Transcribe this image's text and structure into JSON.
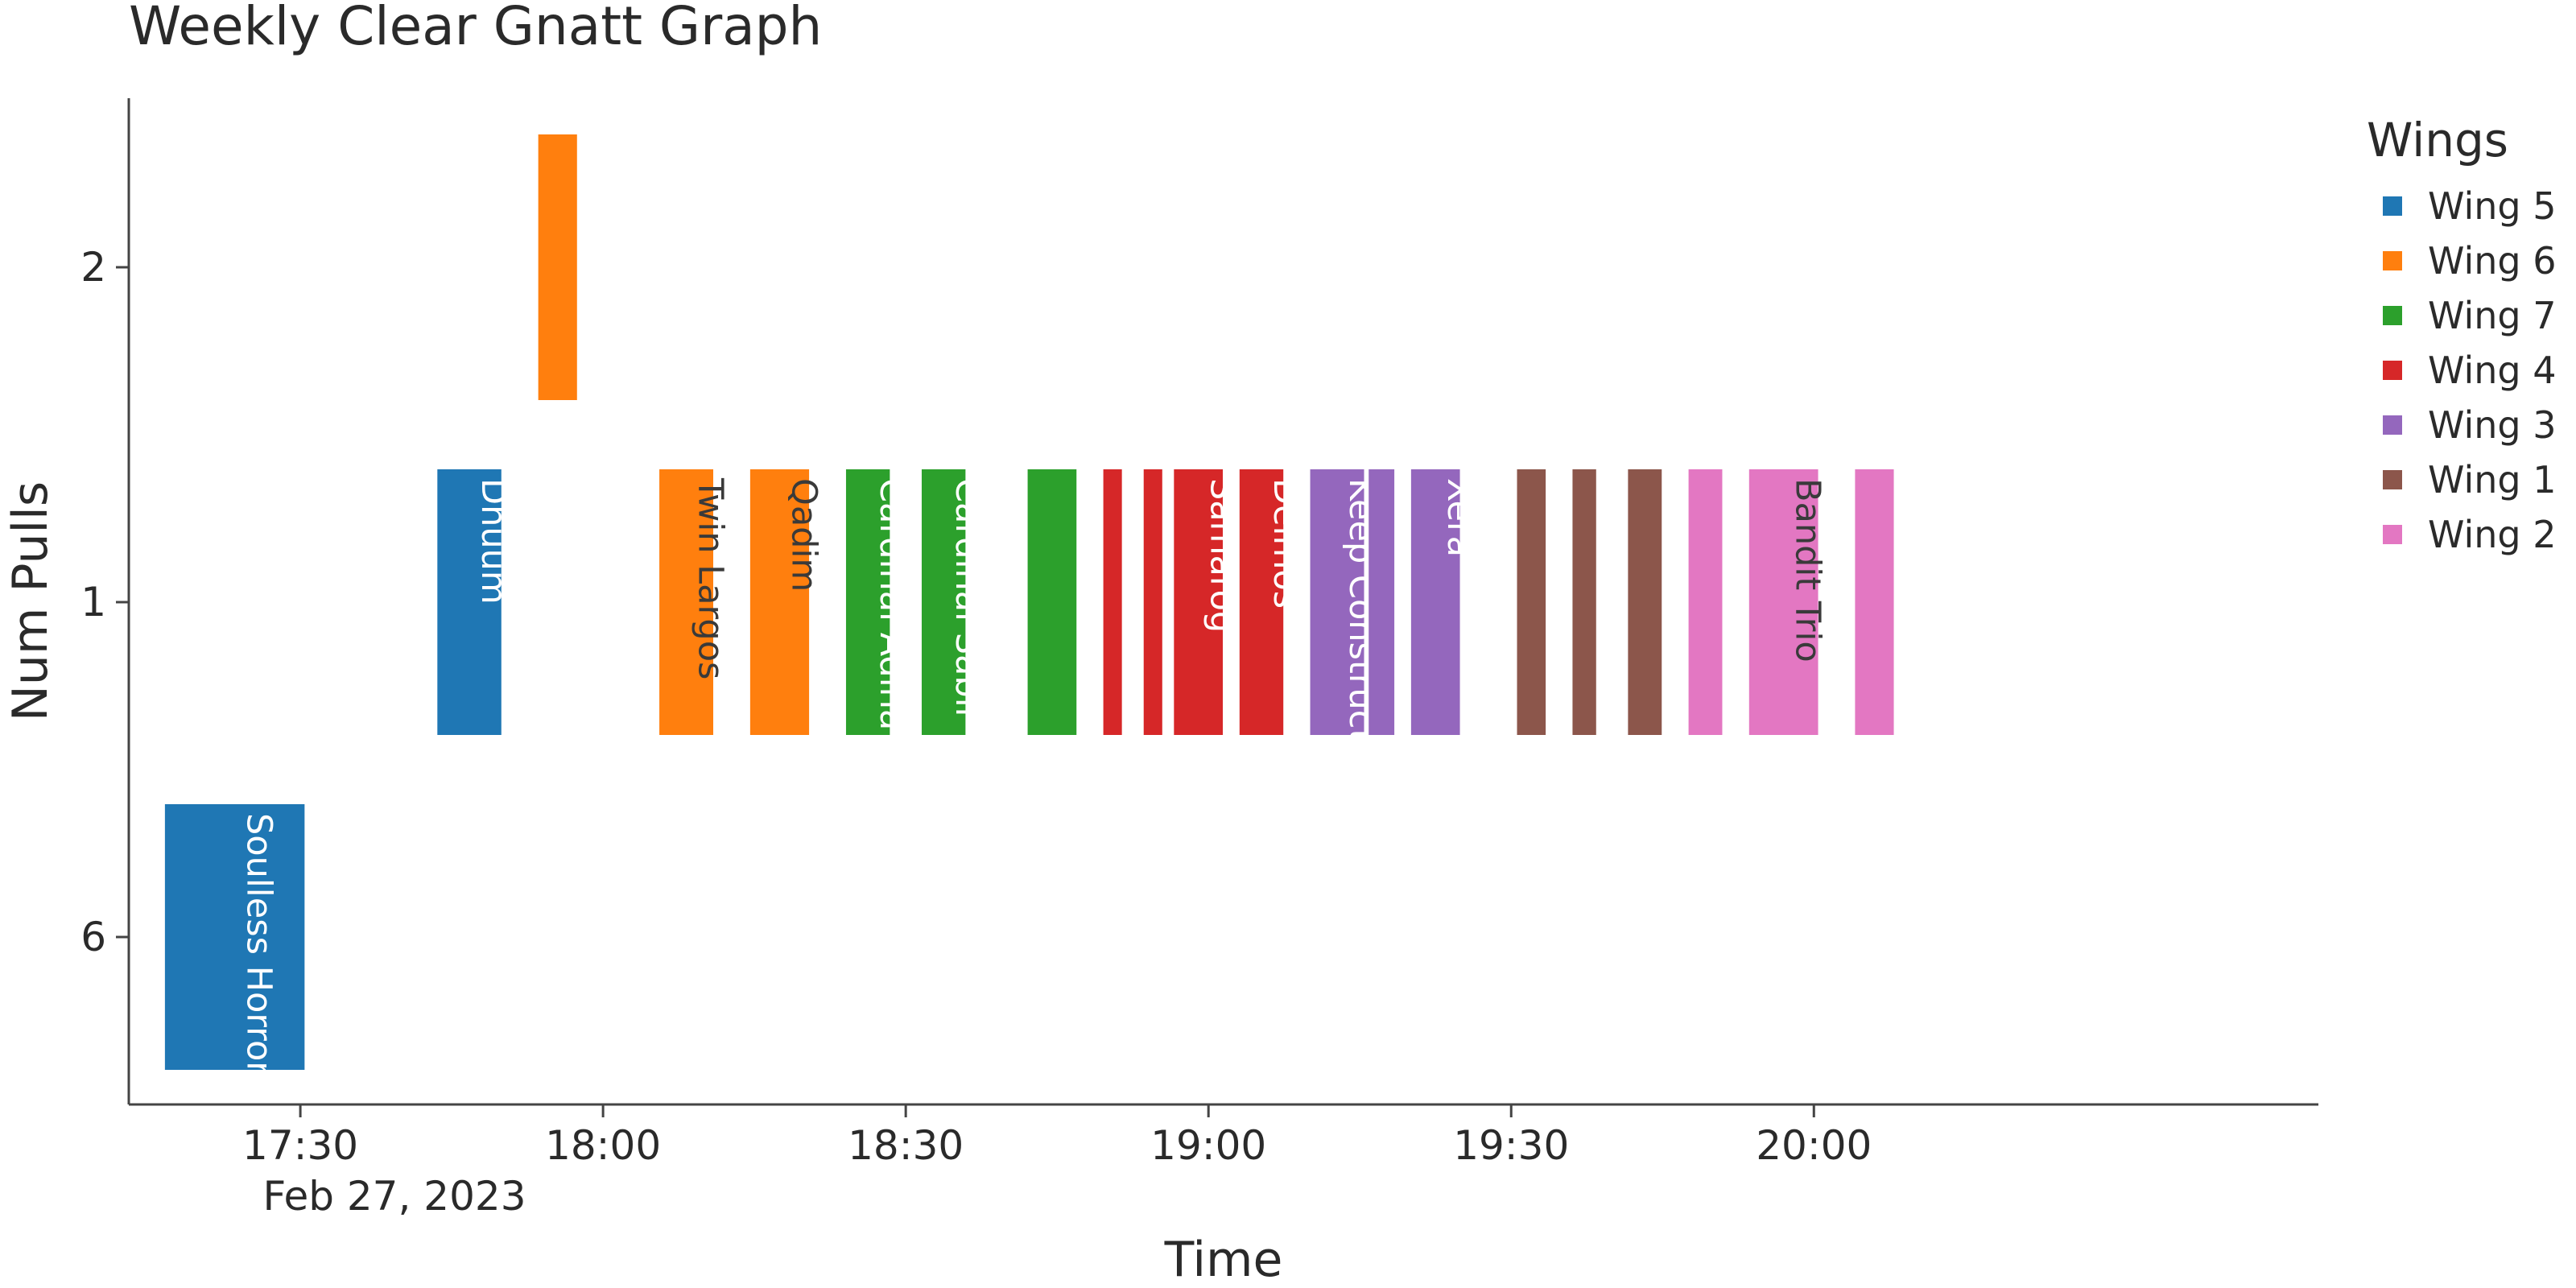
{
  "chart_data": {
    "type": "gantt",
    "title": "Weekly Clear Gnatt Graph",
    "xlabel": "Time",
    "ylabel": "Num Pulls",
    "date_label": "Feb 27, 2023",
    "x_ticks": [
      "17:30",
      "18:00",
      "18:30",
      "19:00",
      "19:30",
      "20:00"
    ],
    "xlim": [
      "17:13",
      "20:50"
    ],
    "y_categories": [
      "6",
      "1",
      "2"
    ],
    "legend_title": "Wings",
    "legend_position": "top-right",
    "series": [
      {
        "name": "Wing 5",
        "color": "#1f77b4"
      },
      {
        "name": "Wing 6",
        "color": "#ff7f0e"
      },
      {
        "name": "Wing 7",
        "color": "#2ca02c"
      },
      {
        "name": "Wing 4",
        "color": "#d62728"
      },
      {
        "name": "Wing 3",
        "color": "#9467bd"
      },
      {
        "name": "Wing 1",
        "color": "#8c564b"
      },
      {
        "name": "Wing 2",
        "color": "#e377c2"
      }
    ],
    "tasks": [
      {
        "start": "17:16.5",
        "end": "17:30.5",
        "pulls": "6",
        "wing": "Wing 5",
        "label": "Soulless Horror"
      },
      {
        "start": "17:43.5",
        "end": "17:50",
        "pulls": "1",
        "wing": "Wing 5",
        "label": "Dhuum"
      },
      {
        "start": "17:53.5",
        "end": "17:57.5",
        "pulls": "2",
        "wing": "Wing 6",
        "label": ""
      },
      {
        "start": "18:05.5",
        "end": "18:11",
        "pulls": "1",
        "wing": "Wing 6",
        "label": "Twin Largos"
      },
      {
        "start": "18:14.5",
        "end": "18:20.5",
        "pulls": "1",
        "wing": "Wing 6",
        "label": "Qadim"
      },
      {
        "start": "18:24",
        "end": "18:28.5",
        "pulls": "1",
        "wing": "Wing 7",
        "label": "Cardinal Adina"
      },
      {
        "start": "18:31.5",
        "end": "18:36",
        "pulls": "1",
        "wing": "Wing 7",
        "label": "Cardinal Sabir"
      },
      {
        "start": "18:42",
        "end": "18:47",
        "pulls": "1",
        "wing": "Wing 7",
        "label": ""
      },
      {
        "start": "18:49.5",
        "end": "18:51.5",
        "pulls": "1",
        "wing": "Wing 4",
        "label": ""
      },
      {
        "start": "18:53.5",
        "end": "18:55.5",
        "pulls": "1",
        "wing": "Wing 4",
        "label": ""
      },
      {
        "start": "18:56.5",
        "end": "19:01.5",
        "pulls": "1",
        "wing": "Wing 4",
        "label": "Samarog"
      },
      {
        "start": "19:03",
        "end": "19:07.5",
        "pulls": "1",
        "wing": "Wing 4",
        "label": "Deimos"
      },
      {
        "start": "19:10",
        "end": "19:15.5",
        "pulls": "1",
        "wing": "Wing 3",
        "label": "Keep Construct"
      },
      {
        "start": "19:15.8",
        "end": "19:18.5",
        "pulls": "1",
        "wing": "Wing 3",
        "label": ""
      },
      {
        "start": "19:20",
        "end": "19:25",
        "pulls": "1",
        "wing": "Wing 3",
        "label": "Xera"
      },
      {
        "start": "19:30.5",
        "end": "19:33.5",
        "pulls": "1",
        "wing": "Wing 1",
        "label": ""
      },
      {
        "start": "19:36",
        "end": "19:38.5",
        "pulls": "1",
        "wing": "Wing 1",
        "label": ""
      },
      {
        "start": "19:41.5",
        "end": "19:45",
        "pulls": "1",
        "wing": "Wing 1",
        "label": ""
      },
      {
        "start": "19:47.5",
        "end": "19:51",
        "pulls": "1",
        "wing": "Wing 2",
        "label": ""
      },
      {
        "start": "19:53.5",
        "end": "20:00.5",
        "pulls": "1",
        "wing": "Wing 2",
        "label": "Bandit Trio"
      },
      {
        "start": "20:04",
        "end": "20:08",
        "pulls": "1",
        "wing": "Wing 2",
        "label": ""
      }
    ]
  }
}
